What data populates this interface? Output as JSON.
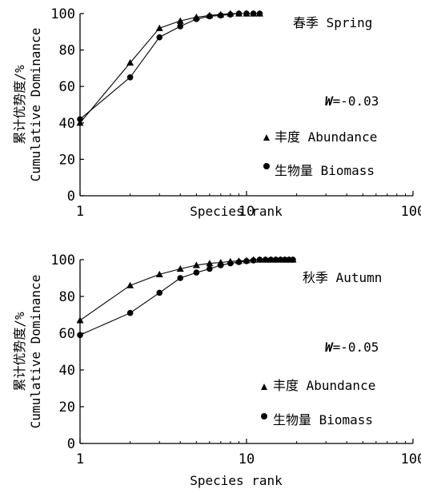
{
  "chart_data": [
    {
      "type": "line",
      "title": "春季 Spring",
      "xlabel": "Species rank",
      "ylabel_line1": "累计优势度/%",
      "ylabel_line2": "Cumulative Dominance",
      "x_scale": "log",
      "xlim": [
        1,
        100
      ],
      "ylim": [
        0,
        100
      ],
      "x_ticks": [
        "1",
        "10",
        "100"
      ],
      "y_ticks": [
        "0",
        "20",
        "40",
        "60",
        "80",
        "100"
      ],
      "annotation_letter": "W",
      "annotation_value": "=-0.03",
      "legend_position": "right",
      "series": [
        {
          "name": "丰度 Abundance",
          "marker": "triangle",
          "x": [
            1,
            2,
            3,
            4,
            5,
            6,
            7,
            8,
            9,
            10,
            11,
            12
          ],
          "y": [
            40,
            73,
            92,
            96,
            98,
            99,
            99.5,
            100,
            100,
            100,
            100,
            100
          ]
        },
        {
          "name": "生物量 Biomass",
          "marker": "circle",
          "x": [
            1,
            2,
            3,
            4,
            5,
            6,
            7,
            8,
            9,
            10,
            11,
            12
          ],
          "y": [
            42,
            65,
            87,
            93,
            97,
            98.5,
            99,
            99.5,
            100,
            100,
            100,
            100
          ]
        }
      ]
    },
    {
      "type": "line",
      "title": "秋季 Autumn",
      "xlabel": "Species rank",
      "ylabel_line1": "累计优势度/%",
      "ylabel_line2": "Cumulative Dominance",
      "x_scale": "log",
      "xlim": [
        1,
        100
      ],
      "ylim": [
        0,
        100
      ],
      "x_ticks": [
        "1",
        "10",
        "100"
      ],
      "y_ticks": [
        "0",
        "20",
        "40",
        "60",
        "80",
        "100"
      ],
      "annotation_letter": "W",
      "annotation_value": "=-0.05",
      "legend_position": "right",
      "series": [
        {
          "name": "丰度 Abundance",
          "marker": "triangle",
          "x": [
            1,
            2,
            3,
            4,
            5,
            6,
            7,
            8,
            9,
            10,
            11,
            12,
            13,
            14,
            15,
            16,
            17,
            18,
            19
          ],
          "y": [
            67,
            86,
            92,
            95,
            97,
            98,
            98.5,
            99,
            99.3,
            99.6,
            100,
            100,
            100,
            100,
            100,
            100,
            100,
            100,
            100
          ]
        },
        {
          "name": "生物量 Biomass",
          "marker": "circle",
          "x": [
            1,
            2,
            3,
            4,
            5,
            6,
            7,
            8,
            9,
            10,
            11,
            12,
            13,
            14,
            15,
            16,
            17,
            18,
            19
          ],
          "y": [
            59,
            71,
            82,
            90,
            93,
            95,
            97,
            98,
            98.7,
            99.2,
            99.6,
            100,
            100,
            100,
            100,
            100,
            100,
            100,
            100
          ]
        }
      ]
    }
  ]
}
